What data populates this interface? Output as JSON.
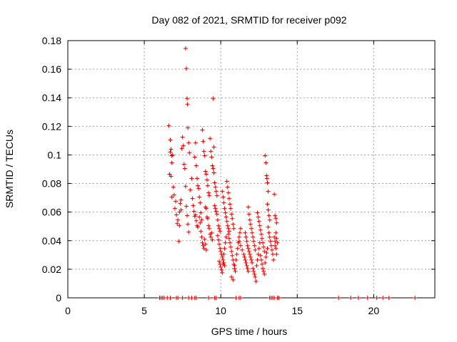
{
  "chart_data": {
    "type": "scatter",
    "title": "Day 082 of 2021, SRMTID for receiver p092",
    "xlabel": "GPS time / hours",
    "ylabel": "SRMTID / TECUs",
    "xlim": [
      0,
      24
    ],
    "ylim": [
      0,
      0.18
    ],
    "grid": true,
    "marker": "+",
    "series_color": "#e00000",
    "xticks": [
      0,
      5,
      10,
      15,
      20
    ],
    "xtick_labels": [
      "0",
      "5",
      "10",
      "15",
      "20"
    ],
    "yticks": [
      0,
      0.02,
      0.04,
      0.06,
      0.08,
      0.1,
      0.12,
      0.14,
      0.16,
      0.18
    ],
    "ytick_labels": [
      "0",
      "0.02",
      "0.04",
      "0.06",
      "0.08",
      "0.1",
      "0.12",
      "0.14",
      "0.16",
      "0.18"
    ],
    "series": [
      {
        "name": "SRMTID",
        "points": [
          [
            6.0,
            0
          ],
          [
            6.1,
            0
          ],
          [
            6.2,
            0
          ],
          [
            6.3,
            0
          ],
          [
            6.5,
            0
          ],
          [
            6.7,
            0
          ],
          [
            7.1,
            0
          ],
          [
            7.2,
            0
          ],
          [
            7.5,
            0
          ],
          [
            7.9,
            0
          ],
          [
            8.1,
            0
          ],
          [
            8.3,
            0
          ],
          [
            8.4,
            0
          ],
          [
            9.2,
            0
          ],
          [
            9.6,
            0
          ],
          [
            9.7,
            0
          ],
          [
            11.0,
            0
          ],
          [
            11.2,
            0
          ],
          [
            11.3,
            0
          ],
          [
            13.2,
            0
          ],
          [
            13.3,
            0
          ],
          [
            13.4,
            0
          ],
          [
            13.5,
            0
          ],
          [
            13.7,
            0
          ],
          [
            13.8,
            0
          ],
          [
            17.7,
            0
          ],
          [
            18.5,
            0
          ],
          [
            19.0,
            0
          ],
          [
            19.6,
            0
          ],
          [
            20.2,
            0
          ],
          [
            20.6,
            0
          ],
          [
            21.0,
            0
          ],
          [
            22.7,
            0
          ],
          [
            6.6,
            0.1205
          ],
          [
            6.7,
            0.1105
          ],
          [
            6.8,
            0.0995
          ],
          [
            6.75,
            0.104
          ],
          [
            6.8,
            0.0945
          ],
          [
            6.7,
            0.102
          ],
          [
            6.85,
            0.1
          ],
          [
            6.65,
            0.0865
          ],
          [
            6.75,
            0.085
          ],
          [
            6.9,
            0.0775
          ],
          [
            6.8,
            0.0705
          ],
          [
            6.95,
            0.072
          ],
          [
            7.05,
            0.0675
          ],
          [
            7.0,
            0.0625
          ],
          [
            7.1,
            0.058
          ],
          [
            7.2,
            0.0545
          ],
          [
            7.15,
            0.052
          ],
          [
            7.3,
            0.0505
          ],
          [
            7.25,
            0.0395
          ],
          [
            7.4,
            0.0685
          ],
          [
            7.35,
            0.066
          ],
          [
            7.4,
            0.0615
          ],
          [
            7.3,
            0.06
          ],
          [
            7.45,
            0.1045
          ],
          [
            7.5,
            0.1125
          ],
          [
            7.55,
            0.1065
          ],
          [
            7.6,
            0.0935
          ],
          [
            7.65,
            0.0905
          ],
          [
            7.7,
            0.078
          ],
          [
            7.75,
            0.064
          ],
          [
            7.8,
            0.0575
          ],
          [
            7.85,
            0.0515
          ],
          [
            7.9,
            0.046
          ],
          [
            7.7,
            0.1745
          ],
          [
            7.75,
            0.1605
          ],
          [
            7.8,
            0.1395
          ],
          [
            7.82,
            0.1355
          ],
          [
            7.85,
            0.119
          ],
          [
            7.9,
            0.1085
          ],
          [
            7.95,
            0.1015
          ],
          [
            8.0,
            0.0755
          ],
          [
            8.1,
            0.0835
          ],
          [
            8.15,
            0.0695
          ],
          [
            8.2,
            0.0645
          ],
          [
            8.25,
            0.0605
          ],
          [
            8.3,
            0.057
          ],
          [
            8.35,
            0.058
          ],
          [
            8.4,
            0.054
          ],
          [
            8.45,
            0.0505
          ],
          [
            8.5,
            0.0495
          ],
          [
            8.3,
            0.0985
          ],
          [
            8.35,
            0.1085
          ],
          [
            8.4,
            0.0925
          ],
          [
            8.45,
            0.0835
          ],
          [
            8.5,
            0.0785
          ],
          [
            8.55,
            0.0765
          ],
          [
            8.6,
            0.0705
          ],
          [
            8.65,
            0.0665
          ],
          [
            8.7,
            0.0595
          ],
          [
            8.75,
            0.0545
          ],
          [
            8.6,
            0.0565
          ],
          [
            8.65,
            0.0525
          ],
          [
            8.7,
            0.0465
          ],
          [
            8.75,
            0.0425
          ],
          [
            8.8,
            0.0385
          ],
          [
            8.85,
            0.0365
          ],
          [
            8.9,
            0.0345
          ],
          [
            8.95,
            0.041
          ],
          [
            9.0,
            0.0375
          ],
          [
            9.05,
            0.0335
          ],
          [
            8.8,
            0.1175
          ],
          [
            8.85,
            0.1095
          ],
          [
            8.9,
            0.1025
          ],
          [
            8.95,
            0.0995
          ],
          [
            9.0,
            0.0885
          ],
          [
            9.05,
            0.0865
          ],
          [
            9.1,
            0.0825
          ],
          [
            9.15,
            0.0785
          ],
          [
            9.2,
            0.0735
          ],
          [
            9.25,
            0.0715
          ],
          [
            9.0,
            0.0635
          ],
          [
            9.05,
            0.0625
          ],
          [
            9.1,
            0.0565
          ],
          [
            9.15,
            0.0555
          ],
          [
            9.2,
            0.0505
          ],
          [
            9.25,
            0.0485
          ],
          [
            9.3,
            0.0445
          ],
          [
            9.35,
            0.0425
          ],
          [
            9.4,
            0.0455
          ],
          [
            9.45,
            0.0405
          ],
          [
            9.3,
            0.1115
          ],
          [
            9.35,
            0.1025
          ],
          [
            9.4,
            0.0985
          ],
          [
            9.45,
            0.0925
          ],
          [
            9.5,
            0.0905
          ],
          [
            9.55,
            0.0875
          ],
          [
            9.6,
            0.0805
          ],
          [
            9.65,
            0.0775
          ],
          [
            9.7,
            0.0745
          ],
          [
            9.75,
            0.0715
          ],
          [
            9.5,
            0.1395
          ],
          [
            9.55,
            0.1055
          ],
          [
            9.6,
            0.0645
          ],
          [
            9.65,
            0.0625
          ],
          [
            9.7,
            0.0605
          ],
          [
            9.75,
            0.0585
          ],
          [
            9.8,
            0.0545
          ],
          [
            9.85,
            0.0505
          ],
          [
            9.9,
            0.0485
          ],
          [
            9.95,
            0.0465
          ],
          [
            9.8,
            0.0435
          ],
          [
            9.85,
            0.0405
          ],
          [
            9.9,
            0.0375
          ],
          [
            9.95,
            0.0345
          ],
          [
            10.0,
            0.0325
          ],
          [
            10.05,
            0.0305
          ],
          [
            10.1,
            0.0285
          ],
          [
            10.15,
            0.0265
          ],
          [
            10.2,
            0.0245
          ],
          [
            10.25,
            0.0225
          ],
          [
            9.9,
            0.0255
          ],
          [
            9.95,
            0.0235
          ],
          [
            10.0,
            0.0215
          ],
          [
            10.05,
            0.0195
          ],
          [
            10.1,
            0.0175
          ],
          [
            10.15,
            0.0235
          ],
          [
            10.2,
            0.0305
          ],
          [
            10.25,
            0.0345
          ],
          [
            10.3,
            0.0385
          ],
          [
            10.35,
            0.0425
          ],
          [
            10.1,
            0.0745
          ],
          [
            10.15,
            0.0705
          ],
          [
            10.2,
            0.0665
          ],
          [
            10.25,
            0.0625
          ],
          [
            10.3,
            0.0595
          ],
          [
            10.35,
            0.0565
          ],
          [
            10.4,
            0.0535
          ],
          [
            10.45,
            0.0505
          ],
          [
            10.5,
            0.0485
          ],
          [
            10.55,
            0.0465
          ],
          [
            10.4,
            0.0815
          ],
          [
            10.45,
            0.0775
          ],
          [
            10.5,
            0.0735
          ],
          [
            10.55,
            0.0695
          ],
          [
            10.6,
            0.0655
          ],
          [
            10.65,
            0.0625
          ],
          [
            10.7,
            0.0585
          ],
          [
            10.75,
            0.0555
          ],
          [
            10.8,
            0.0515
          ],
          [
            10.85,
            0.0485
          ],
          [
            10.5,
            0.0445
          ],
          [
            10.55,
            0.0415
          ],
          [
            10.6,
            0.0385
          ],
          [
            10.65,
            0.0355
          ],
          [
            10.7,
            0.0325
          ],
          [
            10.75,
            0.0295
          ],
          [
            10.8,
            0.0265
          ],
          [
            10.85,
            0.0235
          ],
          [
            10.9,
            0.0205
          ],
          [
            10.95,
            0.0185
          ],
          [
            10.7,
            0.0145
          ],
          [
            10.8,
            0.0125
          ],
          [
            10.9,
            0.0225
          ],
          [
            11.0,
            0.0265
          ],
          [
            11.05,
            0.0305
          ],
          [
            11.1,
            0.0345
          ],
          [
            11.15,
            0.0385
          ],
          [
            11.2,
            0.0425
          ],
          [
            11.25,
            0.0455
          ],
          [
            11.3,
            0.0485
          ],
          [
            11.2,
            0.0395
          ],
          [
            11.3,
            0.0365
          ],
          [
            11.4,
            0.0335
          ],
          [
            11.5,
            0.0305
          ],
          [
            11.55,
            0.0285
          ],
          [
            11.6,
            0.0265
          ],
          [
            11.65,
            0.0245
          ],
          [
            11.7,
            0.0225
          ],
          [
            11.75,
            0.0205
          ],
          [
            11.8,
            0.0185
          ],
          [
            11.6,
            0.0455
          ],
          [
            11.65,
            0.0425
          ],
          [
            11.7,
            0.0395
          ],
          [
            11.75,
            0.0365
          ],
          [
            11.8,
            0.0345
          ],
          [
            11.85,
            0.0325
          ],
          [
            11.9,
            0.0305
          ],
          [
            11.95,
            0.0285
          ],
          [
            12.0,
            0.0265
          ],
          [
            12.05,
            0.0245
          ],
          [
            11.8,
            0.0635
          ],
          [
            11.85,
            0.0585
          ],
          [
            11.9,
            0.0545
          ],
          [
            11.95,
            0.0515
          ],
          [
            12.0,
            0.0485
          ],
          [
            12.05,
            0.0455
          ],
          [
            12.1,
            0.0425
          ],
          [
            12.15,
            0.0395
          ],
          [
            12.2,
            0.0365
          ],
          [
            12.25,
            0.0335
          ],
          [
            12.1,
            0.0205
          ],
          [
            12.15,
            0.0185
          ],
          [
            12.2,
            0.0165
          ],
          [
            12.25,
            0.0145
          ],
          [
            12.3,
            0.0115
          ],
          [
            12.35,
            0.0225
          ],
          [
            12.4,
            0.0265
          ],
          [
            12.45,
            0.0305
          ],
          [
            12.5,
            0.0345
          ],
          [
            12.55,
            0.0385
          ],
          [
            12.4,
            0.0595
          ],
          [
            12.45,
            0.0565
          ],
          [
            12.5,
            0.0535
          ],
          [
            12.55,
            0.0505
          ],
          [
            12.6,
            0.0475
          ],
          [
            12.65,
            0.0445
          ],
          [
            12.7,
            0.0415
          ],
          [
            12.75,
            0.0385
          ],
          [
            12.8,
            0.0355
          ],
          [
            12.85,
            0.0325
          ],
          [
            12.6,
            0.0295
          ],
          [
            12.65,
            0.0265
          ],
          [
            12.7,
            0.0235
          ],
          [
            12.75,
            0.0205
          ],
          [
            12.8,
            0.0185
          ],
          [
            12.85,
            0.0165
          ],
          [
            12.9,
            0.0245
          ],
          [
            12.95,
            0.0285
          ],
          [
            13.0,
            0.0315
          ],
          [
            13.05,
            0.0345
          ],
          [
            12.9,
            0.0995
          ],
          [
            12.95,
            0.0945
          ],
          [
            13.0,
            0.0855
          ],
          [
            13.02,
            0.0835
          ],
          [
            13.05,
            0.0805
          ],
          [
            13.1,
            0.0745
          ],
          [
            13.05,
            0.0655
          ],
          [
            13.1,
            0.0615
          ],
          [
            13.15,
            0.0575
          ],
          [
            13.2,
            0.0545
          ],
          [
            13.1,
            0.0495
          ],
          [
            13.15,
            0.0455
          ],
          [
            13.2,
            0.0425
          ],
          [
            13.25,
            0.0395
          ],
          [
            13.3,
            0.0365
          ],
          [
            13.35,
            0.0335
          ],
          [
            13.4,
            0.0305
          ],
          [
            13.45,
            0.0265
          ],
          [
            13.5,
            0.0425
          ],
          [
            13.55,
            0.0395
          ],
          [
            13.5,
            0.0725
          ],
          [
            13.55,
            0.0575
          ],
          [
            13.6,
            0.0555
          ],
          [
            13.65,
            0.0525
          ],
          [
            13.6,
            0.0455
          ],
          [
            13.65,
            0.0415
          ],
          [
            13.7,
            0.0385
          ],
          [
            13.6,
            0.0345
          ],
          [
            13.65,
            0.0305
          ],
          [
            13.55,
            0.0365
          ]
        ]
      }
    ]
  }
}
